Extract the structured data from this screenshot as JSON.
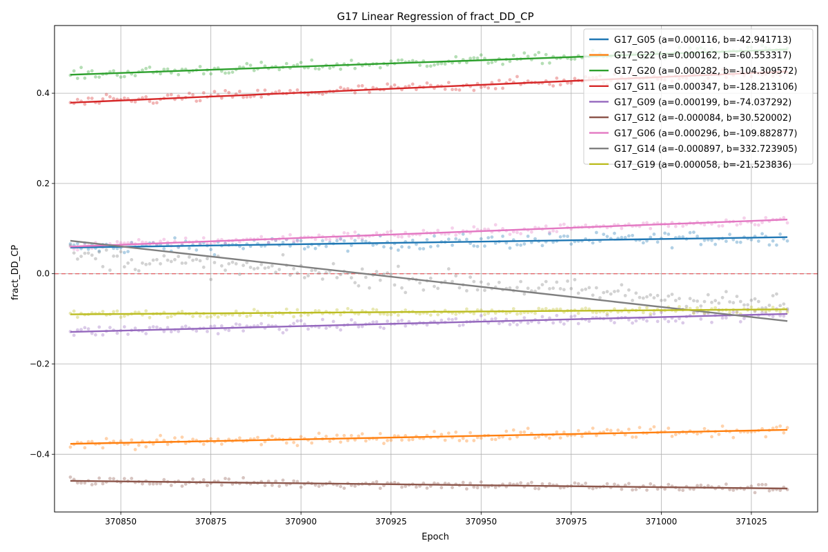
{
  "chart_data": {
    "type": "scatter",
    "title": "G17 Linear Regression of fract_DD_CP",
    "xlabel": "Epoch",
    "ylabel": "fract_DD_CP",
    "xlim": [
      370831.6,
      371043.4
    ],
    "ylim": [
      -0.528,
      0.55
    ],
    "x_range": [
      370836,
      371035
    ],
    "xticks": [
      370850,
      370875,
      370900,
      370925,
      370950,
      370975,
      371000,
      371025
    ],
    "xtick_labels": [
      "370850",
      "370875",
      "370900",
      "370925",
      "370950",
      "370975",
      "371000",
      "371025"
    ],
    "yticks": [
      -0.4,
      -0.2,
      0.0,
      0.2,
      0.4
    ],
    "ytick_labels": [
      "−0.4",
      "−0.2",
      "0.0",
      "0.2",
      "0.4"
    ],
    "grid": true,
    "legend_position": "top-right",
    "reference_line": {
      "y": 0.0,
      "style": "dashed",
      "color": "#e3676a"
    },
    "series": [
      {
        "name": "G17_G05",
        "label": "G17_G05 (a=0.000116, b=-42.941713)",
        "a": 0.000116,
        "b": -42.941713,
        "color": "#1f77b4",
        "start": 0.058,
        "end": 0.081,
        "noise": 0.008
      },
      {
        "name": "G17_G22",
        "label": "G17_G22 (a=0.000162, b=-60.553317)",
        "a": 0.000162,
        "b": -60.553317,
        "color": "#ff7f0e",
        "start": -0.377,
        "end": -0.346,
        "noise": 0.006
      },
      {
        "name": "G17_G20",
        "label": "G17_G20 (a=0.000282, b=-104.309572)",
        "a": 0.000282,
        "b": -104.309572,
        "color": "#2ca02c",
        "start": 0.441,
        "end": 0.497,
        "noise": 0.006
      },
      {
        "name": "G17_G11",
        "label": "G17_G11 (a=0.000347, b=-128.213106)",
        "a": 0.000347,
        "b": -128.213106,
        "color": "#d62728",
        "start": 0.379,
        "end": 0.448,
        "noise": 0.006
      },
      {
        "name": "G17_G09",
        "label": "G17_G09 (a=0.000199, b=-74.037292)",
        "a": 0.000199,
        "b": -74.037292,
        "color": "#9467bd",
        "start": -0.129,
        "end": -0.089,
        "noise": 0.006
      },
      {
        "name": "G17_G12",
        "label": "G17_G12 (a=-0.000084, b=30.520002)",
        "a": -8.4e-05,
        "b": 30.520002,
        "color": "#8c564b",
        "start": -0.459,
        "end": -0.476,
        "noise": 0.005
      },
      {
        "name": "G17_G06",
        "label": "G17_G06 (a=0.000296, b=-109.882877)",
        "a": 0.000296,
        "b": -109.882877,
        "color": "#e377c2",
        "start": 0.06,
        "end": 0.12,
        "noise": 0.005
      },
      {
        "name": "G17_G14",
        "label": "G17_G14 (a=-0.000897, b=332.723905)",
        "a": -0.000897,
        "b": 332.723905,
        "color": "#7f7f7f",
        "start": 0.073,
        "end": -0.105,
        "noise": 0.012,
        "points_start": 0.04,
        "points_end": -0.07
      },
      {
        "name": "G17_G19",
        "label": "G17_G19 (a=0.000058, b=-21.523836)",
        "a": 5.8e-05,
        "b": -21.523836,
        "color": "#bcbd22",
        "start": -0.09,
        "end": -0.079,
        "noise": 0.004
      }
    ]
  }
}
